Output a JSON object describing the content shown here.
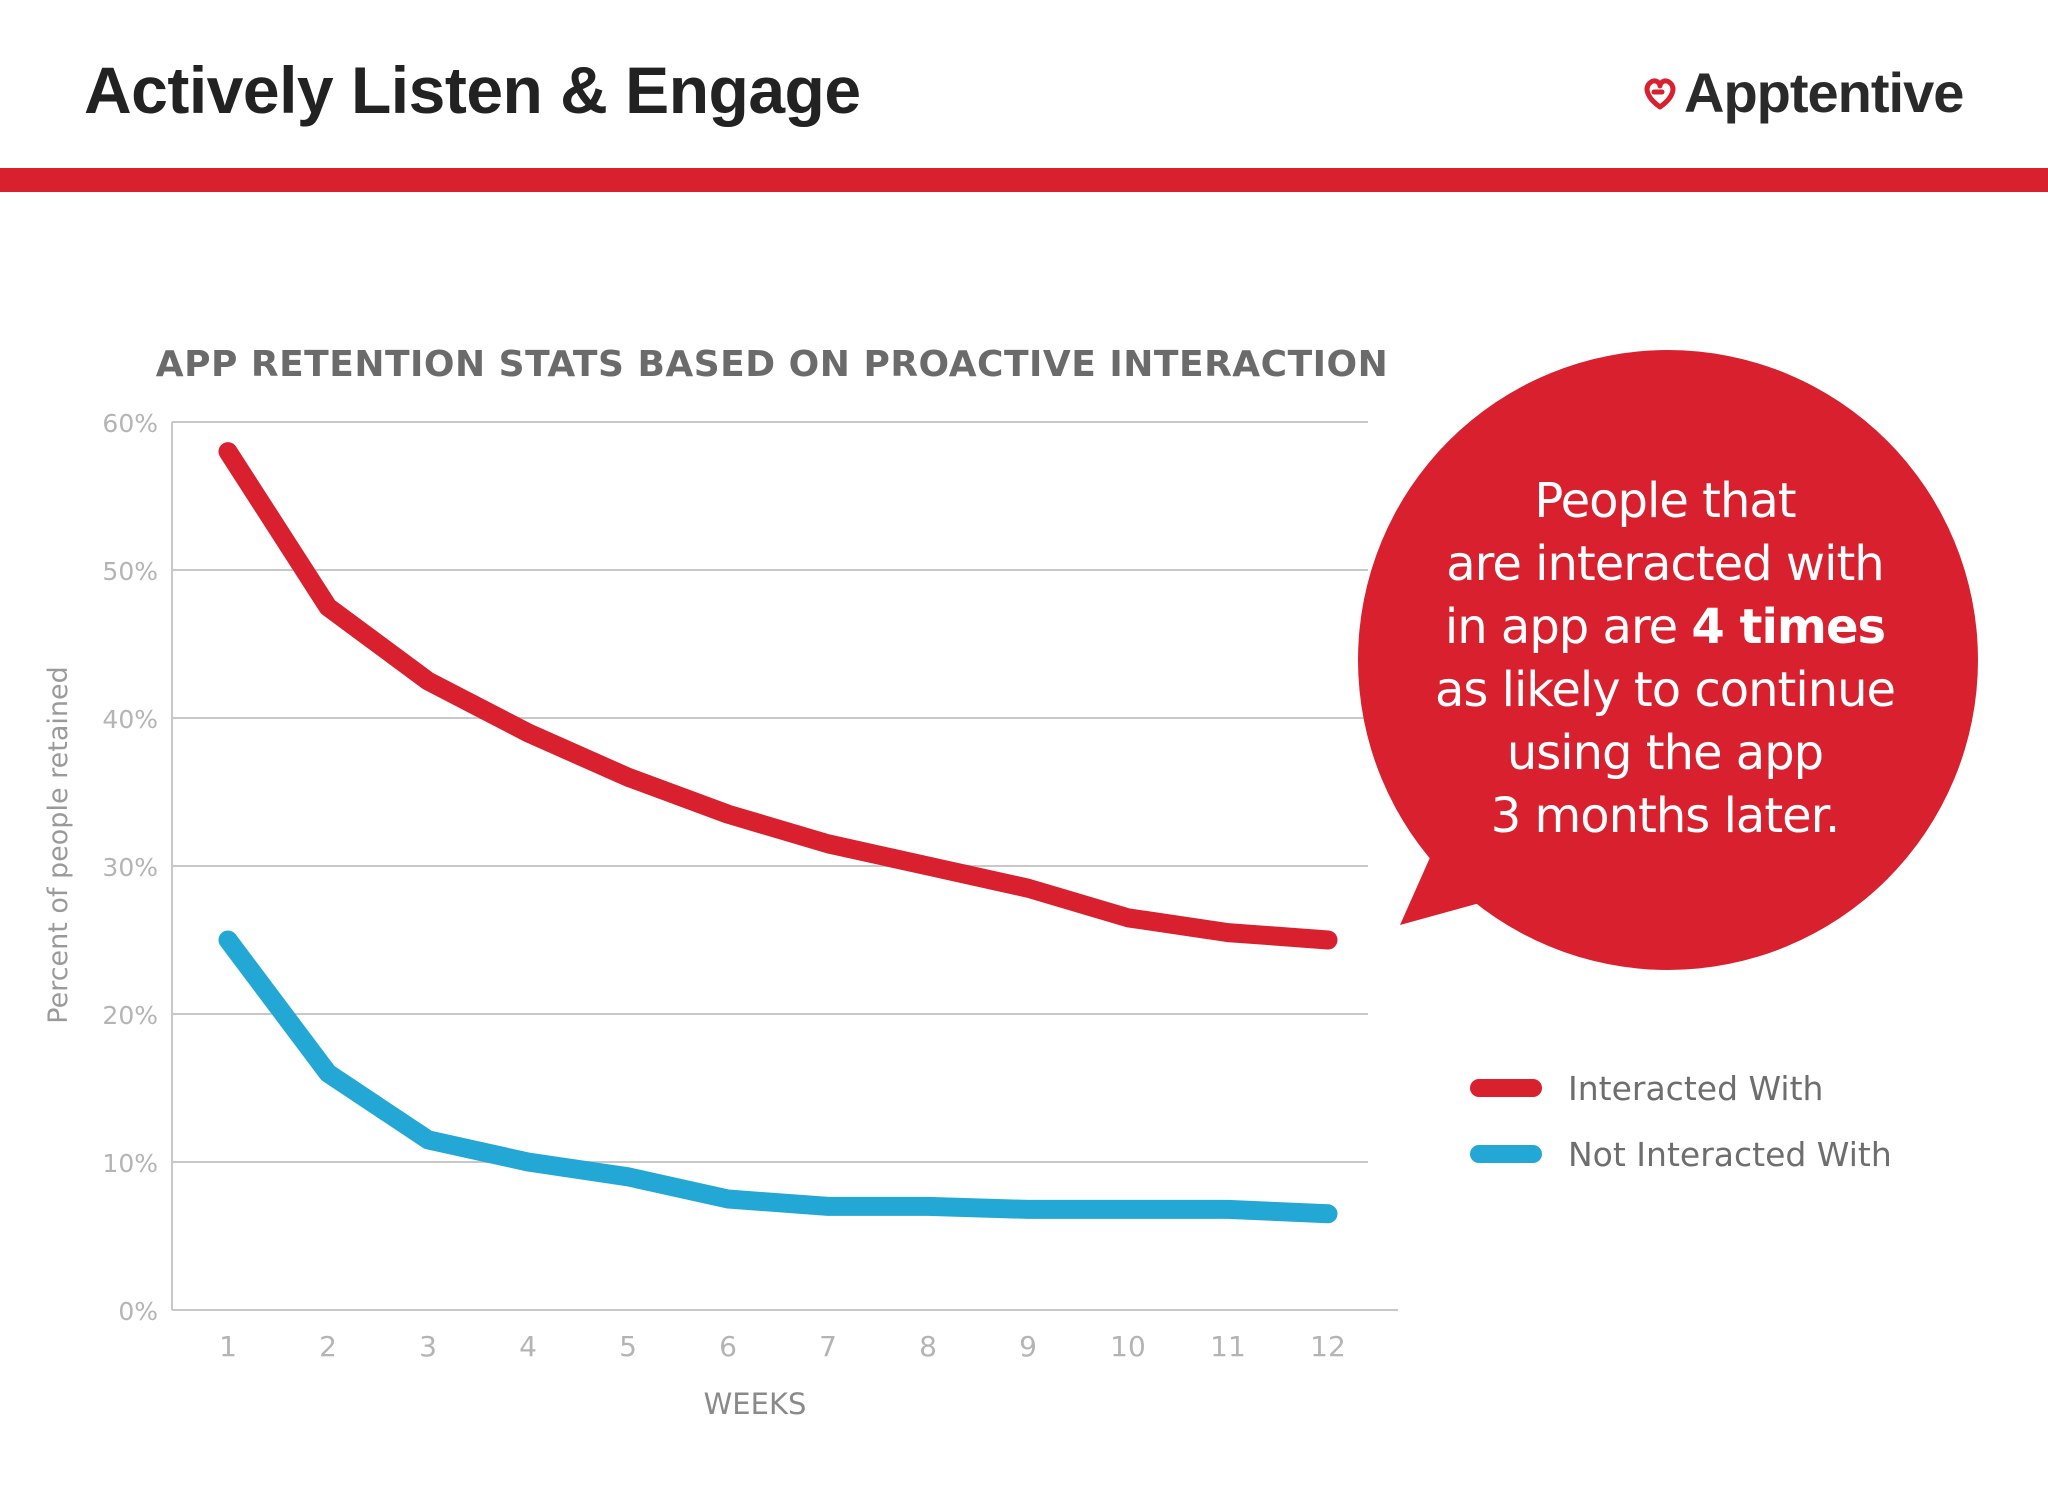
{
  "slide": {
    "title": "Actively Listen & Engage",
    "brand": "Apptentive"
  },
  "callout": {
    "line1": "People that",
    "line2": "are interacted with",
    "line3_prefix": "in app are ",
    "line3_bold": "4 times",
    "line4": "as likely to continue",
    "line5": "using the app",
    "line6": "3 months later."
  },
  "colors": {
    "accent": "#d9202f",
    "interacted": "#d9202f",
    "not_interacted": "#23a8d6",
    "grid": "#c8c8c8",
    "tick_text": "#b4b4b4"
  },
  "chart_data": {
    "type": "line",
    "title": "APP RETENTION STATS BASED ON PROACTIVE INTERACTION",
    "xlabel": "WEEKS",
    "ylabel": "Percent of people retained",
    "x": [
      1,
      2,
      3,
      4,
      5,
      6,
      7,
      8,
      9,
      10,
      11,
      12
    ],
    "y_ticks": [
      "0%",
      "10%",
      "20%",
      "30%",
      "40%",
      "50%",
      "60%"
    ],
    "ylim": [
      0,
      60
    ],
    "grid": true,
    "legend_position": "right",
    "series": [
      {
        "name": "Interacted With",
        "values": [
          58,
          47.5,
          42.5,
          39,
          36,
          33.5,
          31.5,
          30,
          28.5,
          26.5,
          25.5,
          25
        ]
      },
      {
        "name": "Not Interacted With",
        "values": [
          25,
          16,
          11.5,
          10,
          9,
          7.5,
          7,
          7,
          6.8,
          6.8,
          6.8,
          6.5
        ]
      }
    ]
  }
}
